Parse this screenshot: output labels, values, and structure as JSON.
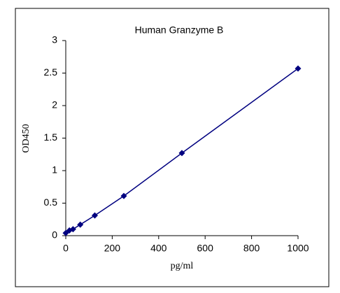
{
  "chart_data": {
    "type": "line",
    "title": "Human  Granzyme B",
    "x_label": "pg/ml",
    "y_label": "OD450",
    "x": [
      0,
      15.6,
      31.25,
      62.5,
      125,
      250,
      500,
      1000
    ],
    "values": [
      0.04,
      0.08,
      0.1,
      0.17,
      0.31,
      0.61,
      1.27,
      2.57
    ],
    "color": "#000080",
    "xlim": [
      0,
      1000
    ],
    "xticks": [
      0,
      200,
      400,
      600,
      800,
      1000
    ],
    "ylim": [
      0,
      3
    ],
    "yticks": [
      0,
      0.5,
      1,
      1.5,
      2,
      2.5,
      3
    ]
  }
}
